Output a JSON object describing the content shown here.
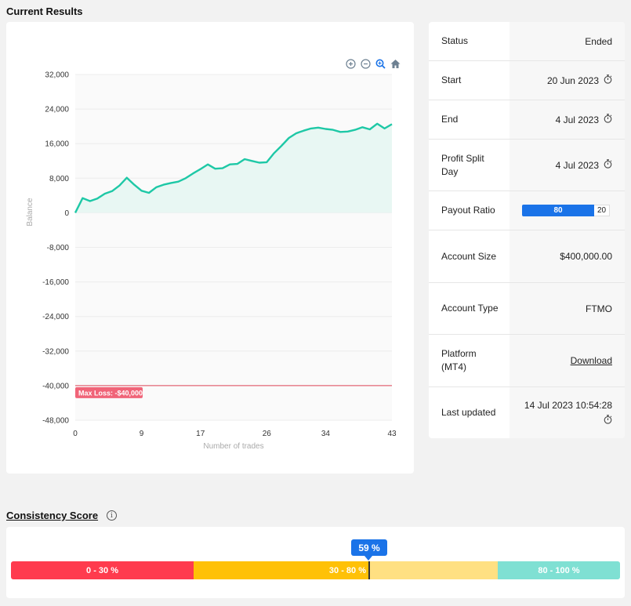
{
  "page": {
    "title": "Current Results"
  },
  "chart_toolbar": {
    "icons": [
      "zoom-in-icon",
      "zoom-out-icon",
      "zoom-select-icon",
      "home-icon"
    ]
  },
  "chart_data": {
    "type": "area",
    "xlabel": "Number of trades",
    "ylabel": "Balance",
    "xlim": [
      0,
      43
    ],
    "ylim": [
      -48000,
      32000
    ],
    "x_ticks": [
      "0",
      "9",
      "17",
      "26",
      "34",
      "43"
    ],
    "y_ticks": [
      "32,000",
      "24,000",
      "16,000",
      "8,000",
      "0",
      "-8,000",
      "-16,000",
      "-24,000",
      "-32,000",
      "-40,000",
      "-48,000"
    ],
    "series": [
      {
        "x": [
          0,
          1,
          2,
          3,
          4,
          5,
          6,
          7,
          8,
          9,
          10,
          11,
          12,
          13,
          14,
          15,
          16,
          17,
          18,
          19,
          20,
          21,
          22,
          23,
          24,
          25,
          26,
          27,
          28,
          29,
          30,
          31,
          32,
          33,
          34,
          35,
          36,
          37,
          38,
          39,
          40,
          41,
          42,
          43
        ],
        "y": [
          0,
          3400,
          2700,
          3300,
          4400,
          5000,
          6300,
          8100,
          6500,
          5100,
          4600,
          5900,
          6500,
          6900,
          7200,
          8000,
          9100,
          10100,
          11200,
          10200,
          10300,
          11200,
          11300,
          12400,
          12000,
          11600,
          11700,
          13800,
          15500,
          17300,
          18400,
          19000,
          19500,
          19700,
          19400,
          19200,
          18700,
          18800,
          19200,
          19800,
          19300,
          20600,
          19500,
          20500
        ]
      }
    ],
    "threshold": {
      "value": -40000,
      "label": "Max Loss: -$40,000"
    },
    "colors": {
      "line": "#1ec8a6",
      "area": "#e8f7f3",
      "threshold": "#e0465a"
    }
  },
  "info": {
    "rows": [
      {
        "label": "Status",
        "value": "Ended",
        "icon": ""
      },
      {
        "label": "Start",
        "value": "20 Jun 2023",
        "icon": "stopwatch-icon"
      },
      {
        "label": "End",
        "value": "4 Jul 2023",
        "icon": "stopwatch-icon"
      },
      {
        "label": "Profit Split Day",
        "value": "4 Jul 2023",
        "icon": "stopwatch-icon"
      },
      {
        "label": "Payout Ratio",
        "value_primary": "80",
        "value_secondary": "20",
        "primary_fraction": 0.8
      },
      {
        "label": "Account Size",
        "value": "$400,000.00"
      },
      {
        "label": "Account Type",
        "value": "FTMO"
      },
      {
        "label": "Platform (MT4)",
        "value": "Download"
      },
      {
        "label": "Last updated",
        "value": "14 Jul 2023 10:54:28",
        "icon": "stopwatch-icon"
      }
    ]
  },
  "consistency": {
    "title": "Consistency Score",
    "score_label": "59 %",
    "score": 59,
    "segments": [
      {
        "label": "0 - 30 %",
        "color": "#ff3b4e"
      },
      {
        "label": "30 - 80 %",
        "color": "#ffc107"
      },
      {
        "label": "",
        "color": "#ffe082"
      },
      {
        "label": "80 - 100 %",
        "color": "#7fe0d3"
      }
    ]
  }
}
